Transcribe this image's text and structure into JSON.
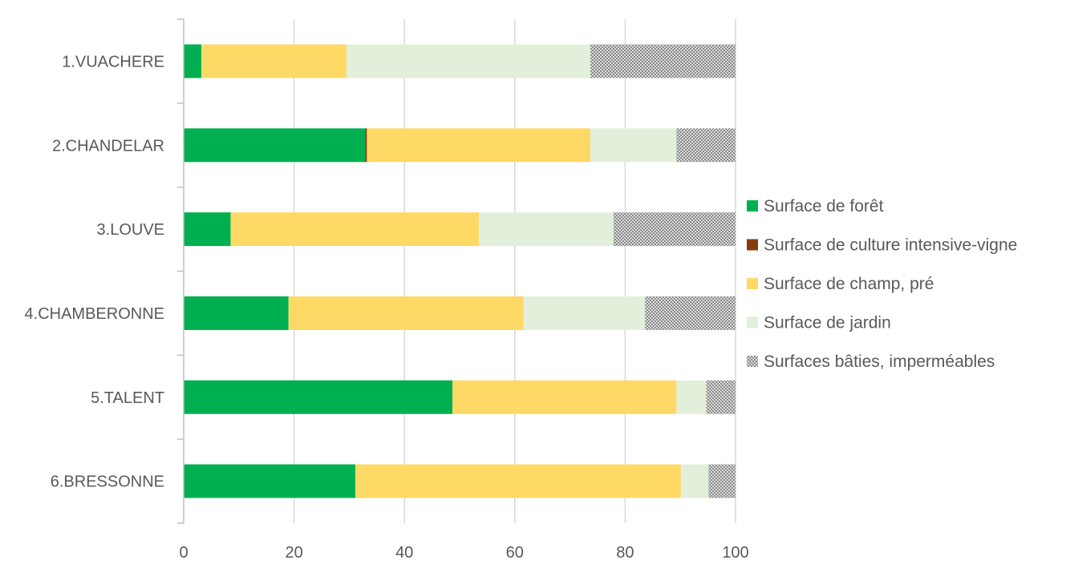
{
  "chart_data": {
    "type": "bar",
    "orientation": "horizontal",
    "stacked": true,
    "categories": [
      "1.VUACHERE",
      "2.CHANDELAR",
      "3.LOUVE",
      "4.CHAMBERONNE",
      "5.TALENT",
      "6.BRESSONNE"
    ],
    "series": [
      {
        "name": "Surface de forêt",
        "color": "#00b050",
        "pattern": "none",
        "values": [
          3.2,
          32.9,
          8.5,
          19.0,
          48.7,
          31.1
        ]
      },
      {
        "name": "Surface de culture intensive-vigne",
        "color": "#843c0c",
        "pattern": "none",
        "values": [
          0,
          0.3,
          0,
          0,
          0,
          0
        ]
      },
      {
        "name": "Surface de champ, pré",
        "color": "#ffd966",
        "pattern": "none",
        "values": [
          26.3,
          40.5,
          45.0,
          42.6,
          40.6,
          59.0
        ]
      },
      {
        "name": "Surface de jardin",
        "color": "#e2efda",
        "pattern": "none",
        "values": [
          44.2,
          15.6,
          24.4,
          22.0,
          5.4,
          5.0
        ]
      },
      {
        "name": "Surfaces bâties, imperméables",
        "color": "#a6a6a6",
        "pattern": "dots",
        "values": [
          26.3,
          10.7,
          22.1,
          16.4,
          5.3,
          4.9
        ]
      }
    ],
    "xaxis": {
      "min": 0,
      "max": 100,
      "ticks": [
        0,
        20,
        40,
        60,
        80,
        100
      ],
      "grid": true
    },
    "legend": {
      "position": "right"
    }
  }
}
